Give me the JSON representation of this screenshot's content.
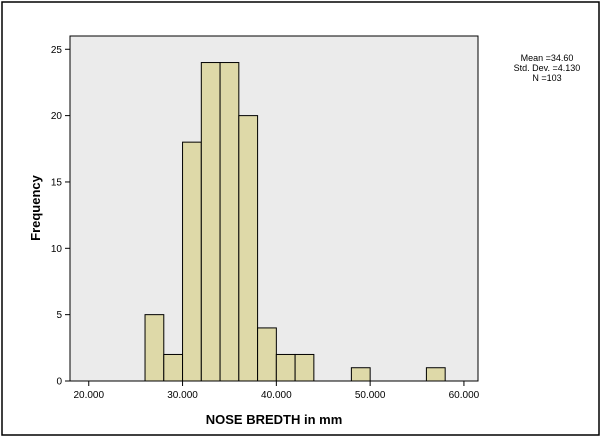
{
  "chart_data": {
    "type": "bar",
    "subtype": "histogram",
    "xlabel": "NOSE BREDTH in mm",
    "ylabel": "Frequency",
    "xlim": [
      18,
      61.5
    ],
    "ylim": [
      0,
      26
    ],
    "x_ticks": [
      20,
      30,
      40,
      50,
      60
    ],
    "x_tick_labels": [
      "20.000",
      "30.000",
      "40.000",
      "50.000",
      "60.000"
    ],
    "y_ticks": [
      0,
      5,
      10,
      15,
      20,
      25
    ],
    "y_tick_labels": [
      "0",
      "5",
      "10",
      "15",
      "20",
      "25"
    ],
    "bin_width": 2,
    "bins": [
      {
        "start": 26,
        "end": 28,
        "count": 5
      },
      {
        "start": 28,
        "end": 30,
        "count": 2
      },
      {
        "start": 30,
        "end": 32,
        "count": 18
      },
      {
        "start": 32,
        "end": 34,
        "count": 24
      },
      {
        "start": 34,
        "end": 36,
        "count": 24
      },
      {
        "start": 36,
        "end": 38,
        "count": 20
      },
      {
        "start": 38,
        "end": 40,
        "count": 4
      },
      {
        "start": 40,
        "end": 42,
        "count": 2
      },
      {
        "start": 42,
        "end": 44,
        "count": 2
      },
      {
        "start": 48,
        "end": 50,
        "count": 1
      },
      {
        "start": 56,
        "end": 58,
        "count": 1
      }
    ],
    "bar_color": "#ded9a8",
    "plot_bg": "#ebebeb",
    "grid": false,
    "stats": {
      "mean": "Mean =34.60",
      "sd": "Std. Dev. =4.130",
      "n": "N =103"
    },
    "stats_placement": "right"
  }
}
